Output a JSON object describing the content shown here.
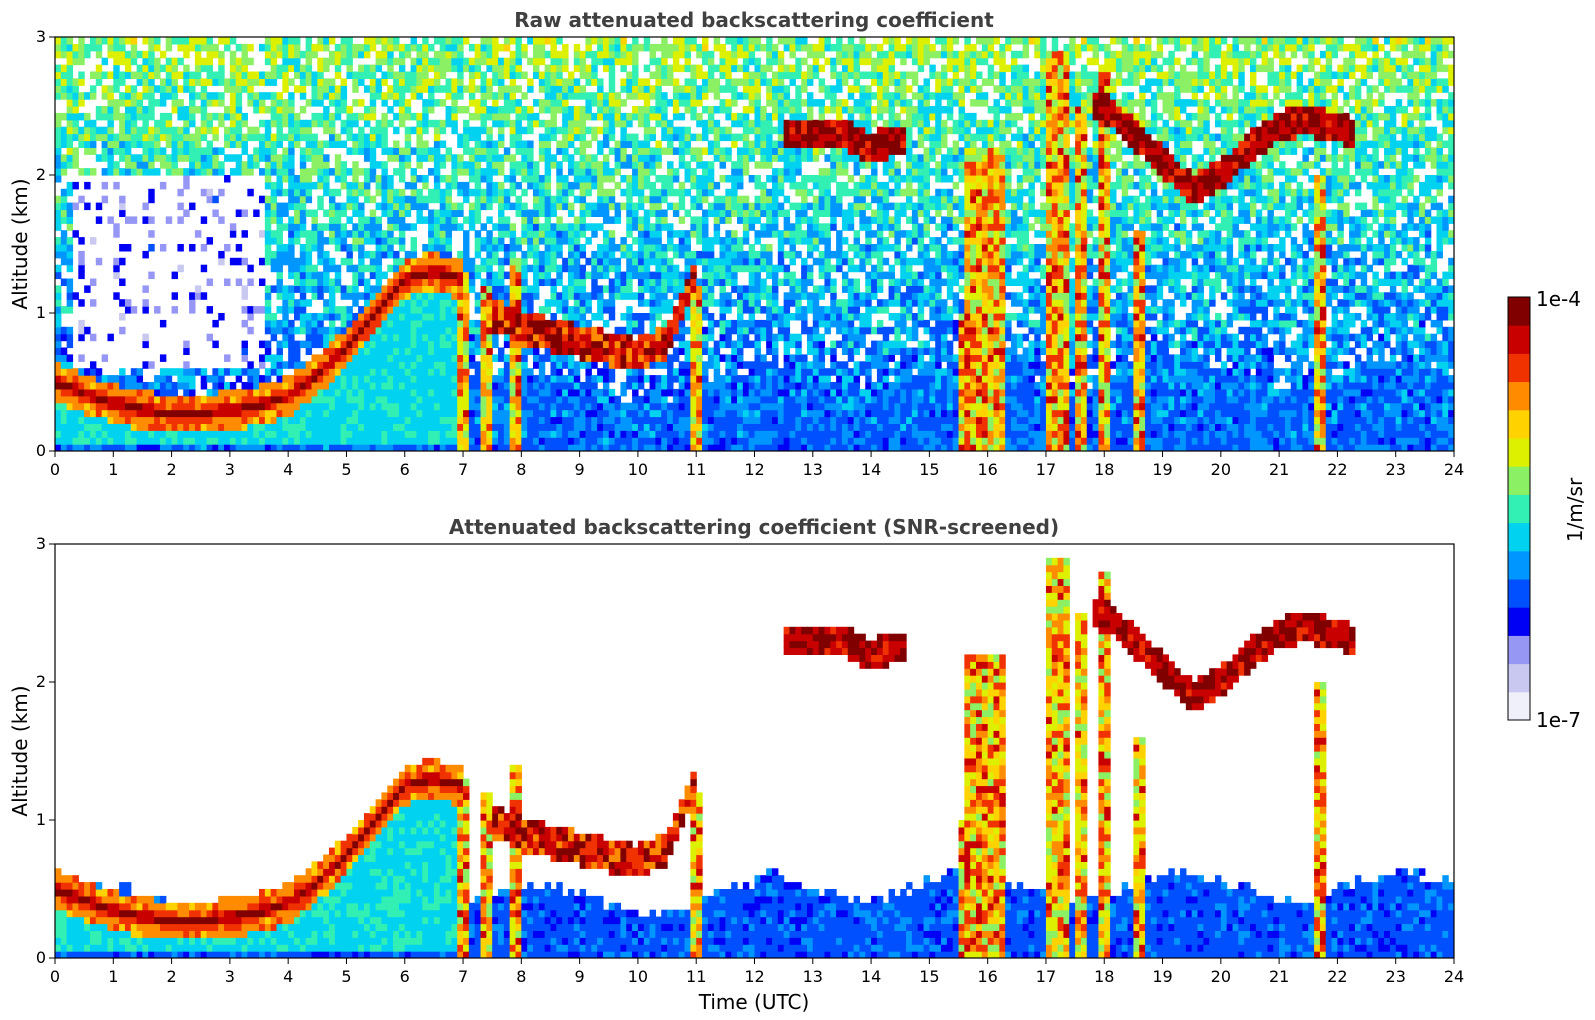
{
  "chart_data": [
    {
      "type": "heatmap",
      "title": "Raw attenuated backscattering coefficient",
      "xlabel": "",
      "ylabel": "Altitude (km)",
      "xlim": [
        0,
        24
      ],
      "ylim": [
        0,
        3
      ],
      "xticks": [
        0,
        1,
        2,
        3,
        4,
        5,
        6,
        7,
        8,
        9,
        10,
        11,
        12,
        13,
        14,
        15,
        16,
        17,
        18,
        19,
        20,
        21,
        22,
        23,
        24
      ],
      "yticks": [
        0,
        1,
        2,
        3
      ],
      "screened": false
    },
    {
      "type": "heatmap",
      "title": "Attenuated backscattering coefficient (SNR-screened)",
      "xlabel": "Time (UTC)",
      "ylabel": "Altitude (km)",
      "xlim": [
        0,
        24
      ],
      "ylim": [
        0,
        3
      ],
      "xticks": [
        0,
        1,
        2,
        3,
        4,
        5,
        6,
        7,
        8,
        9,
        10,
        11,
        12,
        13,
        14,
        15,
        16,
        17,
        18,
        19,
        20,
        21,
        22,
        23,
        24
      ],
      "yticks": [
        0,
        1,
        2,
        3
      ],
      "screened": true
    }
  ],
  "colorbar": {
    "label": "1/m/sr",
    "max_label": "1e-4",
    "min_label": "1e-7",
    "colors": [
      "#f0f0fa",
      "#c8c8f0",
      "#9696f5",
      "#0000f5",
      "#0050ff",
      "#0096ff",
      "#00d2f0",
      "#32f0b4",
      "#8cf064",
      "#dcf000",
      "#ffd200",
      "#ff8c00",
      "#f03200",
      "#c80000",
      "#800000"
    ]
  },
  "features": {
    "boundary_layer": [
      [
        0,
        0.5
      ],
      [
        0.5,
        0.42
      ],
      [
        1,
        0.35
      ],
      [
        1.5,
        0.3
      ],
      [
        2,
        0.27
      ],
      [
        2.5,
        0.27
      ],
      [
        3,
        0.3
      ],
      [
        3.5,
        0.33
      ],
      [
        4,
        0.4
      ],
      [
        4.5,
        0.55
      ],
      [
        5,
        0.75
      ],
      [
        5.5,
        1.0
      ],
      [
        6,
        1.25
      ],
      [
        6.5,
        1.3
      ],
      [
        7,
        1.25
      ]
    ],
    "elevated_layer": [
      [
        7.5,
        1.0
      ],
      [
        8,
        0.9
      ],
      [
        8.5,
        0.85
      ],
      [
        9,
        0.8
      ],
      [
        9.5,
        0.75
      ],
      [
        10,
        0.7
      ],
      [
        10.5,
        0.8
      ],
      [
        11,
        1.3
      ]
    ],
    "upper_clouds": [
      [
        12.5,
        2.3
      ],
      [
        13,
        2.3
      ],
      [
        13.5,
        2.3
      ],
      [
        14,
        2.2
      ],
      [
        14.5,
        2.25
      ],
      [
        18,
        2.5
      ],
      [
        18.5,
        2.3
      ],
      [
        19,
        2.1
      ],
      [
        19.5,
        1.9
      ],
      [
        20,
        2.0
      ],
      [
        20.5,
        2.2
      ],
      [
        21,
        2.35
      ],
      [
        21.5,
        2.4
      ],
      [
        22,
        2.35
      ],
      [
        22.3,
        2.3
      ]
    ],
    "precip_columns": [
      [
        7.0,
        1.3,
        0.12
      ],
      [
        7.4,
        1.2,
        0.08
      ],
      [
        7.9,
        1.4,
        0.08
      ],
      [
        11.0,
        1.2,
        0.05
      ],
      [
        15.6,
        1.0,
        0.1
      ],
      [
        16.0,
        2.2,
        0.6
      ],
      [
        17.2,
        2.9,
        0.25
      ],
      [
        17.6,
        2.5,
        0.15
      ],
      [
        18.0,
        2.8,
        0.12
      ],
      [
        18.6,
        1.6,
        0.08
      ],
      [
        21.7,
        2.0,
        0.06
      ]
    ]
  }
}
